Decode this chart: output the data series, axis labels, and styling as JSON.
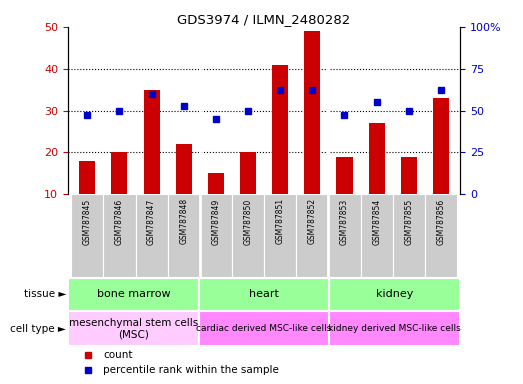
{
  "title": "GDS3974 / ILMN_2480282",
  "samples": [
    "GSM787845",
    "GSM787846",
    "GSM787847",
    "GSM787848",
    "GSM787849",
    "GSM787850",
    "GSM787851",
    "GSM787852",
    "GSM787853",
    "GSM787854",
    "GSM787855",
    "GSM787856"
  ],
  "counts": [
    18,
    20,
    35,
    22,
    15,
    20,
    41,
    49,
    19,
    27,
    19,
    33
  ],
  "percentile_ranks_left": [
    29,
    30,
    34,
    31,
    28,
    30,
    35,
    35,
    29,
    32,
    30,
    35
  ],
  "ylim_left": [
    10,
    50
  ],
  "ylim_right": [
    0,
    100
  ],
  "yticks_left": [
    10,
    20,
    30,
    40,
    50
  ],
  "yticks_right": [
    0,
    25,
    50,
    75,
    100
  ],
  "ytick_labels_right": [
    "0",
    "25",
    "50",
    "75",
    "100%"
  ],
  "bar_color": "#cc0000",
  "dot_color": "#0000cc",
  "tissue_labels": [
    "bone marrow",
    "heart",
    "kidney"
  ],
  "tissue_group_sizes": [
    4,
    4,
    4
  ],
  "tissue_color": "#99ff99",
  "cell_type_labels": [
    "mesenchymal stem cells\n(MSC)",
    "cardiac derived MSC-like cells",
    "kidney derived MSC-like cells"
  ],
  "cell_type_color_0": "#ffccff",
  "cell_type_color_1": "#ff88ff",
  "background_color": "#ffffff",
  "tick_label_color_left": "#cc0000",
  "tick_label_color_right": "#0000cc",
  "sample_box_color": "#cccccc",
  "bar_width": 0.5
}
